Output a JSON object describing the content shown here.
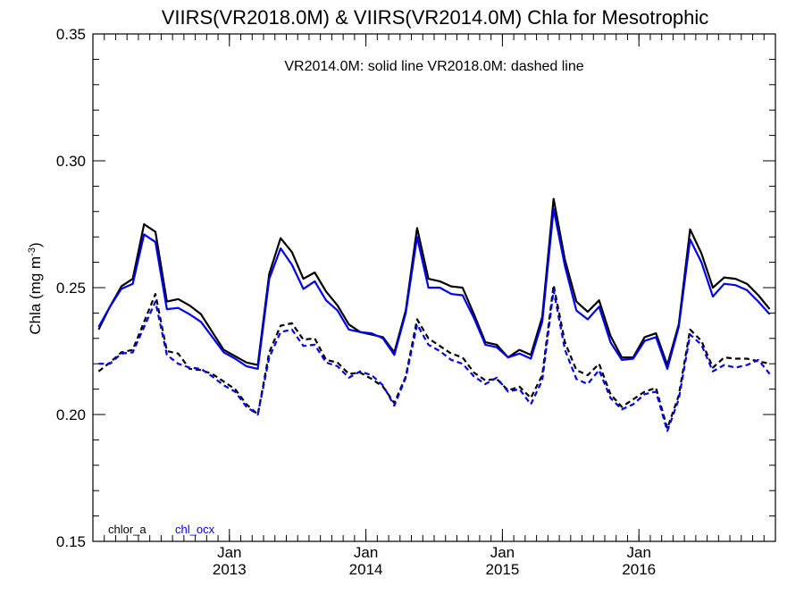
{
  "chart_data": {
    "type": "line",
    "title": "VIIRS(VR2018.0M) & VIIRS(VR2014.0M)  Chla for Mesotrophic",
    "annotation": "VR2014.0M: solid line   VR2018.0M: dashed line",
    "ylabel": "Chla (mg m",
    "ylabel_sup": "-3",
    "ylabel_close": ")",
    "ylim": [
      0.15,
      0.35
    ],
    "yticks": [
      "0.15",
      "0.20",
      "0.25",
      "0.30",
      "0.35"
    ],
    "xlim": [
      "2012-01",
      "2016-12"
    ],
    "xticks": [
      {
        "month": "Jan",
        "year": "2013",
        "date": "2013-01"
      },
      {
        "month": "Jan",
        "year": "2014",
        "date": "2014-01"
      },
      {
        "month": "Jan",
        "year": "2015",
        "date": "2015-01"
      },
      {
        "month": "Jan",
        "year": "2016",
        "date": "2016-01"
      }
    ],
    "x_start": "2012-01",
    "x_step": "1 month",
    "legend": [
      {
        "label": "chlor_a",
        "color": "#000000"
      },
      {
        "label": "chl_ocx",
        "color": "#0000ee"
      }
    ],
    "legend_position": "bottom-left",
    "series": [
      {
        "name": "chlor_a",
        "version": "VR2014.0M",
        "color": "#000000",
        "style": "solid",
        "values": [
          0.2335,
          0.2425,
          0.2505,
          0.2535,
          0.275,
          0.272,
          0.2445,
          0.2455,
          0.243,
          0.2395,
          0.2325,
          0.2255,
          0.223,
          0.2205,
          0.2195,
          0.2555,
          0.2695,
          0.264,
          0.2535,
          0.256,
          0.2485,
          0.243,
          0.2355,
          0.2325,
          0.2315,
          0.2305,
          0.2245,
          0.241,
          0.2735,
          0.2535,
          0.2525,
          0.2505,
          0.25,
          0.2395,
          0.2285,
          0.2275,
          0.2225,
          0.2255,
          0.2235,
          0.2385,
          0.285,
          0.261,
          0.2445,
          0.2405,
          0.245,
          0.231,
          0.2225,
          0.2225,
          0.2305,
          0.232,
          0.2195,
          0.2355,
          0.273,
          0.2635,
          0.25,
          0.254,
          0.2535,
          0.2515,
          0.247,
          0.2415
        ]
      },
      {
        "name": "chl_ocx",
        "version": "VR2014.0M",
        "color": "#0000ee",
        "style": "solid",
        "values": [
          0.2345,
          0.2425,
          0.2495,
          0.2515,
          0.271,
          0.268,
          0.2415,
          0.242,
          0.2395,
          0.2365,
          0.2305,
          0.2245,
          0.222,
          0.219,
          0.218,
          0.2535,
          0.2655,
          0.259,
          0.2495,
          0.2525,
          0.245,
          0.241,
          0.2335,
          0.2325,
          0.232,
          0.23,
          0.2235,
          0.24,
          0.27,
          0.25,
          0.25,
          0.2475,
          0.247,
          0.238,
          0.2275,
          0.2265,
          0.2225,
          0.224,
          0.222,
          0.2365,
          0.281,
          0.2585,
          0.241,
          0.2375,
          0.2425,
          0.2285,
          0.2215,
          0.222,
          0.229,
          0.2305,
          0.218,
          0.2345,
          0.269,
          0.26,
          0.2465,
          0.2515,
          0.251,
          0.249,
          0.2445,
          0.2395
        ]
      },
      {
        "name": "chlor_a",
        "version": "VR2018.0M",
        "color": "#000000",
        "style": "dashed",
        "values": [
          0.217,
          0.2205,
          0.2245,
          0.2255,
          0.2365,
          0.2475,
          0.225,
          0.224,
          0.218,
          0.2175,
          0.216,
          0.213,
          0.21,
          0.204,
          0.2,
          0.2245,
          0.235,
          0.236,
          0.2295,
          0.23,
          0.2215,
          0.2205,
          0.216,
          0.2165,
          0.214,
          0.211,
          0.2045,
          0.215,
          0.2375,
          0.23,
          0.227,
          0.224,
          0.2225,
          0.2165,
          0.2135,
          0.214,
          0.2095,
          0.211,
          0.2065,
          0.2155,
          0.251,
          0.2285,
          0.2175,
          0.2155,
          0.22,
          0.208,
          0.203,
          0.206,
          0.209,
          0.2105,
          0.1945,
          0.2075,
          0.2335,
          0.229,
          0.2185,
          0.2225,
          0.222,
          0.222,
          0.221,
          0.22
        ]
      },
      {
        "name": "chl_ocx",
        "version": "VR2018.0M",
        "color": "#0000ee",
        "style": "dashed",
        "values": [
          0.22,
          0.22,
          0.224,
          0.2245,
          0.2345,
          0.2445,
          0.2235,
          0.22,
          0.2185,
          0.218,
          0.215,
          0.2115,
          0.209,
          0.203,
          0.2,
          0.2225,
          0.2325,
          0.2335,
          0.227,
          0.2275,
          0.2205,
          0.219,
          0.2145,
          0.217,
          0.2155,
          0.2115,
          0.2035,
          0.2145,
          0.2355,
          0.2275,
          0.225,
          0.2215,
          0.22,
          0.215,
          0.212,
          0.2145,
          0.209,
          0.21,
          0.204,
          0.2135,
          0.249,
          0.2255,
          0.214,
          0.212,
          0.2175,
          0.2065,
          0.202,
          0.204,
          0.208,
          0.209,
          0.1935,
          0.206,
          0.2315,
          0.2275,
          0.217,
          0.2195,
          0.2185,
          0.2195,
          0.2215,
          0.216
        ]
      }
    ]
  }
}
